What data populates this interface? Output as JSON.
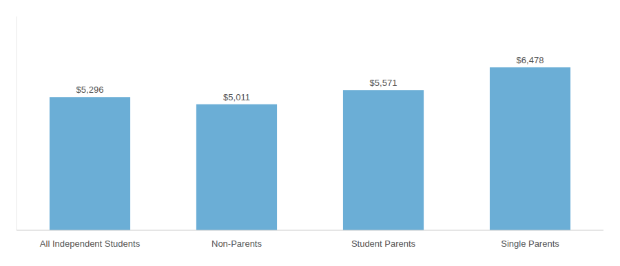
{
  "chart_data": {
    "type": "bar",
    "categories": [
      "All Independent Students",
      "Non-Parents",
      "Student Parents",
      "Single Parents"
    ],
    "values": [
      5296,
      5011,
      5571,
      6478
    ],
    "value_labels": [
      "$5,296",
      "$5,011",
      "$5,571",
      "$6,478"
    ],
    "color": "#6BAED6",
    "ylim": [
      0,
      8500
    ],
    "grid": false,
    "data_labels": true,
    "tick_labels": "x"
  }
}
